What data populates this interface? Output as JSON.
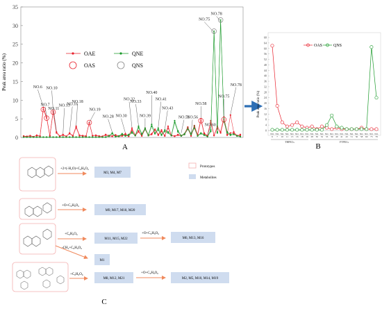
{
  "panel_labels": {
    "a": "A",
    "b": "B",
    "c": "C"
  },
  "chart_data": [
    {
      "type": "line",
      "panel": "A",
      "ylabel": "Peak area ratio (%)",
      "ylim": [
        0,
        35
      ],
      "yticks": [
        0,
        5,
        10,
        15,
        20,
        25,
        30,
        35
      ],
      "legend": [
        {
          "label": "OAE",
          "marker": "filled-dot",
          "color": "#e8202c"
        },
        {
          "label": "QNE",
          "marker": "filled-dot",
          "color": "#1a9a2a"
        },
        {
          "label": "OAS",
          "marker": "open-circle",
          "color": "#e8202c"
        },
        {
          "label": "QNS",
          "marker": "open-circle",
          "color": "#888888"
        }
      ],
      "series": [
        {
          "name": "OAE",
          "color": "#e8202c",
          "values": [
            0.4,
            0.3,
            0.5,
            0.2,
            0.6,
            0.4,
            8.0,
            5.5,
            0.5,
            7.0,
            1.5,
            0.4,
            0.8,
            0.3,
            1.2,
            0.5,
            3.0,
            0.6,
            0.5,
            0.4,
            3.8,
            0.5,
            0.6,
            0.4,
            0.3,
            0.8,
            0.5,
            0.4,
            0.7,
            0.4,
            0.5,
            1.0,
            0.3,
            2.5,
            0.6,
            1.8,
            0.5,
            2.5,
            0.6,
            1.0,
            2.2,
            0.8,
            2.0,
            0.5,
            3.0,
            0.6,
            0.4,
            0.8,
            0.5,
            1.0,
            2.8,
            0.5,
            3.2,
            0.8,
            5.0,
            1.2,
            0.5,
            4.5,
            0.6,
            3.0,
            1.5,
            5.5,
            0.8,
            6.0,
            1.5,
            0.5,
            0.8
          ]
        },
        {
          "name": "QNE",
          "color": "#1a9a2a",
          "values": [
            0.1,
            0.1,
            0.1,
            0.1,
            0.1,
            0.1,
            0.1,
            0.1,
            0.1,
            0.1,
            0.1,
            0.1,
            0.1,
            0.1,
            0.1,
            0.1,
            0.1,
            0.1,
            0.1,
            0.1,
            0.1,
            0.1,
            0.1,
            0.1,
            0.1,
            0.1,
            0.5,
            1.2,
            0.3,
            0.4,
            1.0,
            0.5,
            0.8,
            1.5,
            0.6,
            3.0,
            1.0,
            2.5,
            0.7,
            3.5,
            1.2,
            2.5,
            0.8,
            2.0,
            1.5,
            0.6,
            4.5,
            1.8,
            0.5,
            1.0,
            2.6,
            1.0,
            3.0,
            0.5,
            1.2,
            0.8,
            0.3,
            2.0,
            28.0,
            1.5,
            31.0,
            5.0,
            1.5,
            0.8,
            1.0,
            0.5,
            0.3
          ]
        },
        {
          "name": "OAS",
          "color": "#e8202c",
          "values": [
            0.3,
            0.2,
            0.4,
            0.2,
            0.5,
            0.3,
            7.5,
            5.2,
            0.4,
            6.8,
            1.2,
            0.3,
            0.6,
            0.3,
            1.0,
            0.4,
            2.6,
            0.5,
            0.4,
            0.3,
            4.0,
            0.5,
            0.5,
            0.3,
            0.3,
            0.6,
            0.4,
            0.3,
            0.6,
            0.3,
            0.4,
            0.8,
            0.3,
            2.0,
            0.5,
            1.5,
            0.4,
            2.2,
            0.5,
            0.8,
            2.0,
            0.6,
            1.6,
            0.4,
            2.5,
            0.5,
            0.3,
            0.6,
            0.4,
            0.8,
            2.5,
            0.4,
            2.8,
            0.6,
            4.5,
            1.0,
            0.4,
            4.0,
            0.5,
            2.5,
            1.2,
            4.8,
            0.6,
            1.2,
            1.2,
            0.4,
            0.6
          ]
        },
        {
          "name": "QNS",
          "color": "#1a9a2a",
          "values": [
            0.1,
            0.1,
            0.1,
            0.1,
            0.1,
            0.1,
            0.1,
            0.1,
            0.1,
            0.1,
            0.1,
            0.1,
            0.1,
            0.1,
            0.1,
            0.1,
            0.1,
            0.1,
            0.1,
            0.1,
            0.1,
            0.1,
            0.1,
            0.1,
            0.1,
            0.1,
            0.3,
            1.0,
            0.2,
            0.3,
            0.8,
            0.4,
            0.6,
            1.2,
            0.5,
            2.6,
            0.8,
            2.2,
            0.5,
            3.0,
            1.0,
            2.0,
            0.6,
            1.6,
            1.2,
            0.5,
            4.0,
            1.5,
            0.4,
            0.8,
            2.2,
            0.8,
            2.5,
            0.4,
            1.0,
            0.6,
            0.2,
            1.6,
            28.5,
            1.2,
            31.5,
            4.2,
            1.2,
            0.6,
            0.8,
            0.4,
            0.2
          ]
        }
      ],
      "open_marker_points": [
        {
          "series": "OAS",
          "index": 6
        },
        {
          "series": "OAS",
          "index": 7
        },
        {
          "series": "OAS",
          "index": 9
        },
        {
          "series": "OAS",
          "index": 20
        },
        {
          "series": "OAS",
          "index": 54
        },
        {
          "series": "OAS",
          "index": 61
        },
        {
          "series": "QNS",
          "index": 58
        },
        {
          "series": "QNS",
          "index": 60
        }
      ],
      "annotations": [
        {
          "label": "NO.6",
          "index": 6,
          "value": 8.0
        },
        {
          "label": "NO.7",
          "index": 7,
          "value": 5.5
        },
        {
          "label": "NO.10",
          "index": 9,
          "value": 7.0
        },
        {
          "label": "NO.11",
          "index": 10,
          "value": 1.5
        },
        {
          "label": "NO.13",
          "index": 12,
          "value": 0.8
        },
        {
          "label": "NO.16",
          "index": 14,
          "value": 1.2
        },
        {
          "label": "NO.18",
          "index": 16,
          "value": 3.0
        },
        {
          "label": "NO.19",
          "index": 20,
          "value": 3.8
        },
        {
          "label": "NO.28",
          "index": 27,
          "value": 1.2
        },
        {
          "label": "NO.30",
          "index": 31,
          "value": 1.0
        },
        {
          "label": "NO.32",
          "index": 33,
          "value": 2.5
        },
        {
          "label": "NO.33",
          "index": 35,
          "value": 3.0
        },
        {
          "label": "NO.39",
          "index": 37,
          "value": 2.5
        },
        {
          "label": "NO.40",
          "index": 39,
          "value": 3.5
        },
        {
          "label": "NO.41",
          "index": 41,
          "value": 2.5
        },
        {
          "label": "NO.43",
          "index": 43,
          "value": 2.0
        },
        {
          "label": "NO.51",
          "index": 48,
          "value": 1.0
        },
        {
          "label": "NO.56",
          "index": 51,
          "value": 1.0
        },
        {
          "label": "NO.58",
          "index": 54,
          "value": 5.0
        },
        {
          "label": "NO.60",
          "index": 56,
          "value": 0.5
        },
        {
          "label": "NO.75",
          "index": 58,
          "value": 28.0
        },
        {
          "label": "NO.78",
          "index": 60,
          "value": 31.0
        },
        {
          "label": "NO.75",
          "index": 61,
          "value": 5.5
        },
        {
          "label": "NO.78",
          "index": 63,
          "value": 6.0
        }
      ]
    },
    {
      "type": "line",
      "panel": "B",
      "ylabel": "Peak area ratio (%)",
      "ylim": [
        0,
        68
      ],
      "yticks": [
        0,
        4,
        8,
        12,
        16,
        20,
        24,
        28,
        32,
        36,
        40,
        44,
        48,
        52,
        56,
        60,
        64,
        68
      ],
      "categories": [
        "NO.6",
        "NO.7",
        "NO.10",
        "NO.11",
        "NO.13",
        "NO.16",
        "NO.18",
        "NO.19",
        "NO.28",
        "NO.30",
        "NO.32",
        "NO.33",
        "NO.39",
        "NO.40",
        "NO.41",
        "NO.43",
        "NO.51",
        "NO.56",
        "NO.58",
        "NO.60",
        "NO.75",
        "NO.78"
      ],
      "category_numbers": [
        "6",
        "7",
        "10",
        "11",
        "13",
        "16",
        "18",
        "19",
        "28",
        "30",
        "32",
        "33",
        "39",
        "40",
        "41",
        "43",
        "51",
        "56",
        "58",
        "60",
        "75",
        "78"
      ],
      "groups": [
        {
          "label": "THPECs",
          "start": 0,
          "end": 7
        },
        {
          "label": "FTPECs",
          "start": 8,
          "end": 21
        }
      ],
      "legend": [
        {
          "label": "OAS",
          "color": "#e8202c"
        },
        {
          "label": "QNS",
          "color": "#1a9a2a"
        }
      ],
      "series": [
        {
          "name": "OAS",
          "color": "#e8202c",
          "values": [
            62,
            18,
            6,
            3,
            4,
            6,
            3,
            2,
            3,
            1,
            3,
            2,
            1,
            2,
            1,
            1,
            1,
            1,
            2,
            1,
            1,
            1
          ]
        },
        {
          "name": "QNS",
          "color": "#1a9a2a",
          "values": [
            0.5,
            0.5,
            0.5,
            0.5,
            0.5,
            0.5,
            0.5,
            0.5,
            0.5,
            0.5,
            0.5,
            4,
            11,
            3,
            2,
            1,
            1,
            1,
            1,
            1,
            61,
            24
          ]
        }
      ]
    }
  ],
  "panel_c": {
    "legend": [
      {
        "label": "Prototypes",
        "kind": "prototype"
      },
      {
        "label": "Metabolites",
        "kind": "metabolite"
      }
    ],
    "rows": [
      {
        "reaction": "+2×(-H₂O)+C₆H₈O₆",
        "metabolites": "M3, M4, M7"
      },
      {
        "reaction": "+O+C₆H₈O₆",
        "metabolites": "M9, M17, M18, M20"
      },
      {
        "reaction": "+C₆H₈O₆",
        "metabolites": "M11, M15, M22",
        "reaction2": "+O+C₆H₈O₆",
        "metabolites2": "M6, M13, M16"
      },
      {
        "reaction": "-CH₂+C₆H₈O₆",
        "metabolites": "M1"
      },
      {
        "reaction": "+C₆H₈O₆",
        "metabolites": "M8, M12, M21",
        "reaction2": "+O+C₆H₈O₆",
        "metabolites2": "M2, M5, M10, M14, M19"
      }
    ]
  }
}
